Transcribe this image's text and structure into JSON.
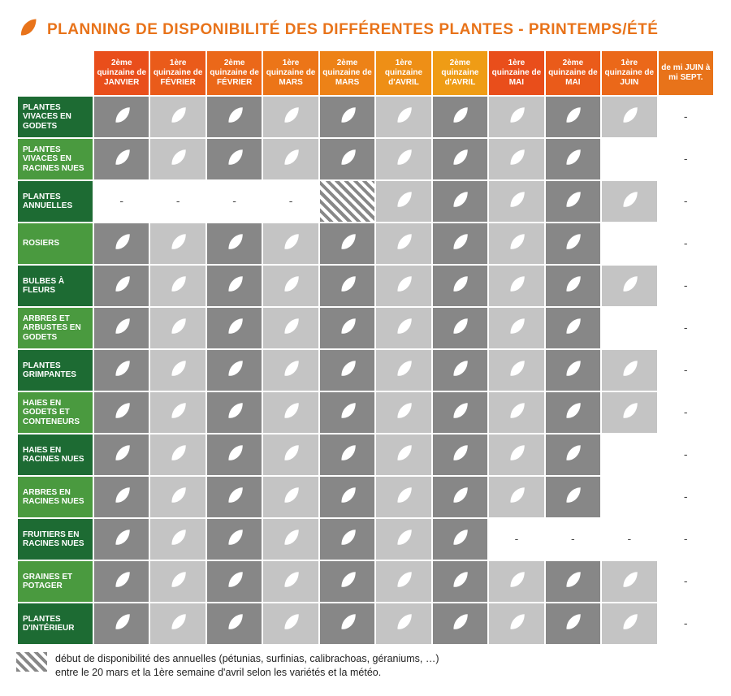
{
  "title": "PLANNING DE DISPONIBILITÉ DES DIFFÉRENTES PLANTES - PRINTEMPS/ÉTÉ",
  "title_color": "#e8731a",
  "leaf_icon_color": "#e8731a",
  "cell_leaf_color": "#ffffff",
  "colors": {
    "grey_dark": "#878787",
    "grey_light": "#c4c4c4",
    "white": "#ffffff",
    "row_dark": "#1d6b33",
    "row_light": "#4a9a3f"
  },
  "columns": [
    {
      "label": "2ème quinzaine de JANVIER",
      "bg": "#e94e1b"
    },
    {
      "label": "1ère quinzaine de FÉVRIER",
      "bg": "#ea5b1a"
    },
    {
      "label": "2ème quinzaine de FÉVRIER",
      "bg": "#eb6819"
    },
    {
      "label": "1ère quinzaine de MARS",
      "bg": "#ec7518"
    },
    {
      "label": "2ème quinzaine de MARS",
      "bg": "#ed8217"
    },
    {
      "label": "1ère quinzaine d'AVRIL",
      "bg": "#ee8f16"
    },
    {
      "label": "2ème quinzaine d'AVRIL",
      "bg": "#ef9c15"
    },
    {
      "label": "1ère quinzaine de MAI",
      "bg": "#e94e1b"
    },
    {
      "label": "2ème quinzaine de MAI",
      "bg": "#ea5b1a"
    },
    {
      "label": "1ère quinzaine de JUIN",
      "bg": "#eb6819"
    },
    {
      "label": "de mi JUIN à mi SEPT.",
      "bg": "#e8731a"
    }
  ],
  "rows": [
    {
      "label": "PLANTES VIVACES EN GODETS",
      "hbg": "dark",
      "cells": [
        "L",
        "L",
        "L",
        "L",
        "L",
        "L",
        "L",
        "L",
        "L",
        "L",
        "-"
      ]
    },
    {
      "label": "PLANTES VIVACES EN RACINES NUES",
      "hbg": "light",
      "cells": [
        "L",
        "L",
        "L",
        "L",
        "L",
        "L",
        "L",
        "L",
        "L",
        "",
        "-"
      ]
    },
    {
      "label": "PLANTES ANNUELLES",
      "hbg": "dark",
      "cells": [
        "-",
        "-",
        "-",
        "-",
        "H",
        "L",
        "L",
        "L",
        "L",
        "L",
        "-"
      ]
    },
    {
      "label": "ROSIERS",
      "hbg": "light",
      "cells": [
        "L",
        "L",
        "L",
        "L",
        "L",
        "L",
        "L",
        "L",
        "L",
        "",
        "-"
      ]
    },
    {
      "label": "BULBES À FLEURS",
      "hbg": "dark",
      "cells": [
        "L",
        "L",
        "L",
        "L",
        "L",
        "L",
        "L",
        "L",
        "L",
        "L",
        "-"
      ]
    },
    {
      "label": "ARBRES ET ARBUSTES EN GODETS",
      "hbg": "light",
      "cells": [
        "L",
        "L",
        "L",
        "L",
        "L",
        "L",
        "L",
        "L",
        "L",
        "",
        "-"
      ]
    },
    {
      "label": "PLANTES GRIMPANTES",
      "hbg": "dark",
      "cells": [
        "L",
        "L",
        "L",
        "L",
        "L",
        "L",
        "L",
        "L",
        "L",
        "L",
        "-"
      ]
    },
    {
      "label": "HAIES EN GODETS ET CONTENEURS",
      "hbg": "light",
      "cells": [
        "L",
        "L",
        "L",
        "L",
        "L",
        "L",
        "L",
        "L",
        "L",
        "L",
        "-"
      ]
    },
    {
      "label": "HAIES EN RACINES NUES",
      "hbg": "dark",
      "cells": [
        "L",
        "L",
        "L",
        "L",
        "L",
        "L",
        "L",
        "L",
        "L",
        "",
        "-"
      ]
    },
    {
      "label": "ARBRES EN RACINES NUES",
      "hbg": "light",
      "cells": [
        "L",
        "L",
        "L",
        "L",
        "L",
        "L",
        "L",
        "L",
        "L",
        "",
        "-"
      ]
    },
    {
      "label": "FRUITIERS EN RACINES NUES",
      "hbg": "dark",
      "cells": [
        "L",
        "L",
        "L",
        "L",
        "L",
        "L",
        "L",
        "-",
        "-",
        "-",
        "-"
      ]
    },
    {
      "label": "GRAINES ET POTAGER",
      "hbg": "light",
      "cells": [
        "L",
        "L",
        "L",
        "L",
        "L",
        "L",
        "L",
        "L",
        "L",
        "L",
        "-"
      ]
    },
    {
      "label": "PLANTES D'INTÉRIEUR",
      "hbg": "dark",
      "cells": [
        "L",
        "L",
        "L",
        "L",
        "L",
        "L",
        "L",
        "L",
        "L",
        "L",
        "-"
      ]
    }
  ],
  "footer_line1": "début de disponibilité des annuelles (pétunias, surfinias, calibrachoas, géraniums, …)",
  "footer_line2": "entre le 20 mars et la 1ère semaine d'avril selon les variétés et la météo."
}
